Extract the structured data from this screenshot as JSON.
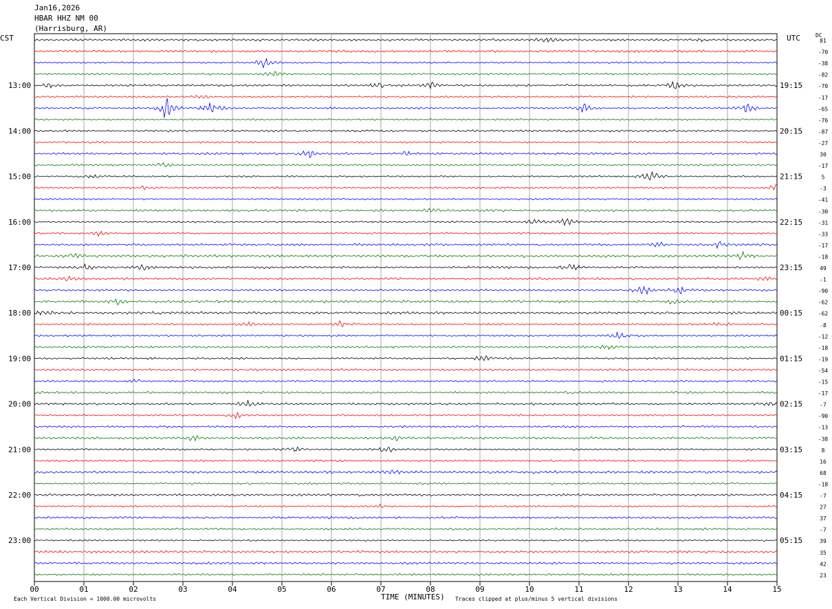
{
  "header": {
    "date": "Jan16,2026",
    "station": "HBAR HHZ NM 00",
    "location": "(Harrisburg, AR)",
    "left_timezone": "CST",
    "right_timezone": "UTC",
    "dc_label": "DC"
  },
  "footer": {
    "scale_note": "Each Vertical Division = 1000.00 microvolts",
    "xaxis_label": "TIME (MINUTES)",
    "clip_note": "Traces clipped at plus/minus 5 vertical divisions"
  },
  "colors": {
    "trace_cycle": [
      "#000000",
      "#ff0000",
      "#0000ff",
      "#007700"
    ],
    "grid": "#aaaaaa"
  },
  "chart_data": {
    "type": "line",
    "title": "HBAR HHZ NM 00",
    "xlabel": "TIME (MINUTES)",
    "xlim": [
      0,
      15
    ],
    "x_ticks": [
      "00",
      "01",
      "02",
      "03",
      "04",
      "05",
      "06",
      "07",
      "08",
      "09",
      "10",
      "11",
      "12",
      "13",
      "14",
      "15"
    ],
    "left_hour_labels": [
      "13:00",
      "14:00",
      "15:00",
      "16:00",
      "17:00",
      "18:00",
      "19:00",
      "20:00",
      "21:00",
      "22:00",
      "23:00"
    ],
    "right_hour_labels": [
      "19:15",
      "20:15",
      "21:15",
      "22:15",
      "23:15",
      "00:15",
      "01:15",
      "02:15",
      "03:15",
      "04:15",
      "05:15"
    ],
    "dc_offsets": [
      "81",
      "-70",
      "-38",
      "-82",
      "-70",
      "-17",
      "-65",
      "-76",
      "-87",
      "-27",
      "30",
      "-17",
      "5",
      "-3",
      "-41",
      "-30",
      "-31",
      "-33",
      "-17",
      "-18",
      "49",
      "-1",
      "-90",
      "-62",
      "-62",
      "-8",
      "-12",
      "-18",
      "-19",
      "-54",
      "-15",
      "-17",
      "-7",
      "-90",
      "-13",
      "-38",
      "8",
      "16",
      "68",
      "-18",
      "-7",
      "27",
      "37",
      "-7",
      "39",
      "35",
      "42",
      "23"
    ],
    "traces_per_hour": 4,
    "trace_count": 48,
    "events": [
      {
        "trace": 0,
        "minute": 10.35,
        "amp": 0.6
      },
      {
        "trace": 0,
        "minute": 13.4,
        "amp": 0.4
      },
      {
        "trace": 2,
        "minute": 4.65,
        "amp": 1.3
      },
      {
        "trace": 3,
        "minute": 4.85,
        "amp": 0.6
      },
      {
        "trace": 4,
        "minute": 0.3,
        "amp": 0.4
      },
      {
        "trace": 4,
        "minute": 6.95,
        "amp": 0.6
      },
      {
        "trace": 4,
        "minute": 8.0,
        "amp": 0.7
      },
      {
        "trace": 4,
        "minute": 12.95,
        "amp": 1.0
      },
      {
        "trace": 5,
        "minute": 3.4,
        "amp": 0.6
      },
      {
        "trace": 6,
        "minute": 2.65,
        "amp": 2.6
      },
      {
        "trace": 6,
        "minute": 3.6,
        "amp": 1.9
      },
      {
        "trace": 6,
        "minute": 11.1,
        "amp": 1.0
      },
      {
        "trace": 6,
        "minute": 14.4,
        "amp": 1.0
      },
      {
        "trace": 10,
        "minute": 5.55,
        "amp": 0.9
      },
      {
        "trace": 10,
        "minute": 7.5,
        "amp": 0.6
      },
      {
        "trace": 11,
        "minute": 2.6,
        "amp": 0.4
      },
      {
        "trace": 12,
        "minute": 1.15,
        "amp": 0.5
      },
      {
        "trace": 12,
        "minute": 12.45,
        "amp": 1.3
      },
      {
        "trace": 13,
        "minute": 2.2,
        "amp": 0.6
      },
      {
        "trace": 13,
        "minute": 15.0,
        "amp": 0.8
      },
      {
        "trace": 15,
        "minute": 8.05,
        "amp": 0.5
      },
      {
        "trace": 16,
        "minute": 10.1,
        "amp": 0.7
      },
      {
        "trace": 16,
        "minute": 10.75,
        "amp": 0.9
      },
      {
        "trace": 17,
        "minute": 1.3,
        "amp": 0.5
      },
      {
        "trace": 18,
        "minute": 12.65,
        "amp": 0.6
      },
      {
        "trace": 18,
        "minute": 13.85,
        "amp": 0.8
      },
      {
        "trace": 19,
        "minute": 0.75,
        "amp": 0.6
      },
      {
        "trace": 19,
        "minute": 14.3,
        "amp": 0.8
      },
      {
        "trace": 20,
        "minute": 1.05,
        "amp": 0.8
      },
      {
        "trace": 20,
        "minute": 2.2,
        "amp": 0.6
      },
      {
        "trace": 20,
        "minute": 10.8,
        "amp": 1.1
      },
      {
        "trace": 21,
        "minute": 0.65,
        "amp": 0.5
      },
      {
        "trace": 21,
        "minute": 14.85,
        "amp": 0.5
      },
      {
        "trace": 22,
        "minute": 12.3,
        "amp": 1.3
      },
      {
        "trace": 22,
        "minute": 13.05,
        "amp": 0.9
      },
      {
        "trace": 23,
        "minute": 1.7,
        "amp": 0.5
      },
      {
        "trace": 23,
        "minute": 12.9,
        "amp": 0.5
      },
      {
        "trace": 24,
        "minute": 0.2,
        "amp": 0.6
      },
      {
        "trace": 25,
        "minute": 4.35,
        "amp": 0.5
      },
      {
        "trace": 25,
        "minute": 6.2,
        "amp": 0.9
      },
      {
        "trace": 25,
        "minute": 13.8,
        "amp": 0.5
      },
      {
        "trace": 26,
        "minute": 11.8,
        "amp": 1.1
      },
      {
        "trace": 27,
        "minute": 11.55,
        "amp": 0.6
      },
      {
        "trace": 28,
        "minute": 9.05,
        "amp": 0.8
      },
      {
        "trace": 30,
        "minute": 2.1,
        "amp": 0.4
      },
      {
        "trace": 32,
        "minute": 4.3,
        "amp": 0.7
      },
      {
        "trace": 32,
        "minute": 14.85,
        "amp": 0.9
      },
      {
        "trace": 33,
        "minute": 4.05,
        "amp": 0.7
      },
      {
        "trace": 35,
        "minute": 3.2,
        "amp": 0.6
      },
      {
        "trace": 35,
        "minute": 7.3,
        "amp": 0.5
      },
      {
        "trace": 36,
        "minute": 5.25,
        "amp": 0.7
      },
      {
        "trace": 36,
        "minute": 7.1,
        "amp": 0.8
      },
      {
        "trace": 37,
        "minute": 6.15,
        "amp": 0.2
      },
      {
        "trace": 38,
        "minute": 7.25,
        "amp": 0.3
      },
      {
        "trace": 41,
        "minute": 7.0,
        "amp": 0.5
      }
    ]
  }
}
